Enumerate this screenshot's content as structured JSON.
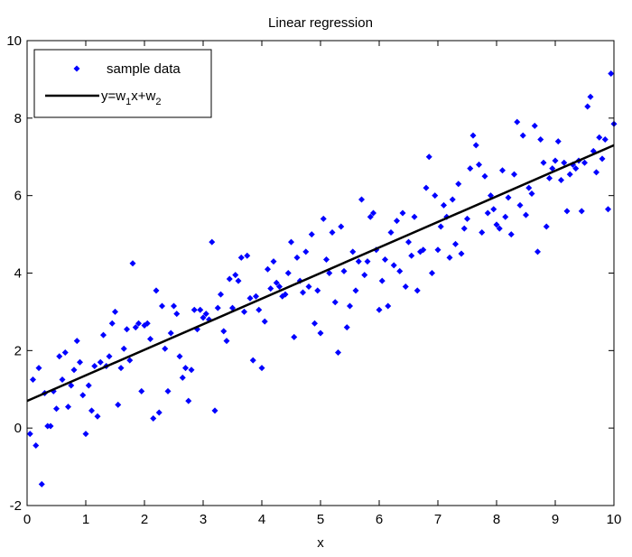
{
  "chart_data": {
    "type": "scatter",
    "title": "Linear regression",
    "xlabel": "x",
    "ylabel": "",
    "xlim": [
      0,
      10
    ],
    "ylim": [
      -2,
      10
    ],
    "xticks": [
      0,
      1,
      2,
      3,
      4,
      5,
      6,
      7,
      8,
      9,
      10
    ],
    "yticks": [
      -2,
      0,
      2,
      4,
      6,
      8,
      10
    ],
    "xtick_labels": [
      "0",
      "1",
      "2",
      "3",
      "4",
      "5",
      "6",
      "7",
      "8",
      "9",
      "10"
    ],
    "ytick_labels": [
      "-2",
      "0",
      "2",
      "4",
      "6",
      "8",
      "10"
    ],
    "grid": false,
    "legend_position": "top-left",
    "legend": {
      "sample_label": "sample data",
      "fit_label_parts": {
        "pre": "y=w",
        "sub1": "1",
        "mid": "x+w",
        "sub2": "2"
      }
    },
    "series": [
      {
        "kind": "scatter",
        "color": "#0000ff",
        "marker": "diamond",
        "points": [
          [
            0.05,
            -0.15
          ],
          [
            0.1,
            1.25
          ],
          [
            0.15,
            -0.45
          ],
          [
            0.2,
            1.55
          ],
          [
            0.25,
            -1.45
          ],
          [
            0.3,
            0.9
          ],
          [
            0.35,
            0.05
          ],
          [
            0.4,
            0.05
          ],
          [
            0.45,
            0.95
          ],
          [
            0.5,
            0.5
          ],
          [
            0.55,
            1.85
          ],
          [
            0.6,
            1.25
          ],
          [
            0.65,
            1.95
          ],
          [
            0.7,
            0.55
          ],
          [
            0.75,
            1.1
          ],
          [
            0.8,
            1.5
          ],
          [
            0.85,
            2.25
          ],
          [
            0.9,
            1.7
          ],
          [
            0.95,
            0.85
          ],
          [
            1.0,
            -0.15
          ],
          [
            1.05,
            1.1
          ],
          [
            1.1,
            0.45
          ],
          [
            1.15,
            1.6
          ],
          [
            1.2,
            0.3
          ],
          [
            1.25,
            1.7
          ],
          [
            1.3,
            2.4
          ],
          [
            1.35,
            1.6
          ],
          [
            1.4,
            1.85
          ],
          [
            1.45,
            2.7
          ],
          [
            1.5,
            3.0
          ],
          [
            1.55,
            0.6
          ],
          [
            1.6,
            1.55
          ],
          [
            1.65,
            2.05
          ],
          [
            1.7,
            2.55
          ],
          [
            1.75,
            1.75
          ],
          [
            1.8,
            4.25
          ],
          [
            1.85,
            2.6
          ],
          [
            1.9,
            2.7
          ],
          [
            1.95,
            0.95
          ],
          [
            2.0,
            2.65
          ],
          [
            2.05,
            2.7
          ],
          [
            2.1,
            2.3
          ],
          [
            2.15,
            0.25
          ],
          [
            2.2,
            3.55
          ],
          [
            2.25,
            0.4
          ],
          [
            2.3,
            3.15
          ],
          [
            2.35,
            2.05
          ],
          [
            2.4,
            0.95
          ],
          [
            2.45,
            2.45
          ],
          [
            2.5,
            3.15
          ],
          [
            2.55,
            2.95
          ],
          [
            2.6,
            1.85
          ],
          [
            2.65,
            1.3
          ],
          [
            2.7,
            1.55
          ],
          [
            2.75,
            0.7
          ],
          [
            2.8,
            1.5
          ],
          [
            2.85,
            3.05
          ],
          [
            2.9,
            2.55
          ],
          [
            2.95,
            3.05
          ],
          [
            3.0,
            2.85
          ],
          [
            3.05,
            2.95
          ],
          [
            3.1,
            2.8
          ],
          [
            3.15,
            4.8
          ],
          [
            3.2,
            0.45
          ],
          [
            3.25,
            3.1
          ],
          [
            3.3,
            3.45
          ],
          [
            3.35,
            2.5
          ],
          [
            3.4,
            2.25
          ],
          [
            3.45,
            3.85
          ],
          [
            3.5,
            3.1
          ],
          [
            3.55,
            3.95
          ],
          [
            3.6,
            3.8
          ],
          [
            3.65,
            4.4
          ],
          [
            3.7,
            3.0
          ],
          [
            3.75,
            4.45
          ],
          [
            3.8,
            3.35
          ],
          [
            3.85,
            1.75
          ],
          [
            3.9,
            3.4
          ],
          [
            3.95,
            3.05
          ],
          [
            4.0,
            1.55
          ],
          [
            4.05,
            2.75
          ],
          [
            4.1,
            4.1
          ],
          [
            4.15,
            3.6
          ],
          [
            4.2,
            4.3
          ],
          [
            4.25,
            3.75
          ],
          [
            4.3,
            3.65
          ],
          [
            4.35,
            3.4
          ],
          [
            4.4,
            3.45
          ],
          [
            4.45,
            4.0
          ],
          [
            4.5,
            4.8
          ],
          [
            4.55,
            2.35
          ],
          [
            4.6,
            4.4
          ],
          [
            4.65,
            3.8
          ],
          [
            4.7,
            3.5
          ],
          [
            4.75,
            4.55
          ],
          [
            4.8,
            3.65
          ],
          [
            4.85,
            5.0
          ],
          [
            4.9,
            2.7
          ],
          [
            4.95,
            3.55
          ],
          [
            5.0,
            2.45
          ],
          [
            5.05,
            5.4
          ],
          [
            5.1,
            4.35
          ],
          [
            5.15,
            4.0
          ],
          [
            5.2,
            5.05
          ],
          [
            5.25,
            3.25
          ],
          [
            5.3,
            1.95
          ],
          [
            5.35,
            5.2
          ],
          [
            5.4,
            4.05
          ],
          [
            5.45,
            2.6
          ],
          [
            5.5,
            3.15
          ],
          [
            5.55,
            4.55
          ],
          [
            5.6,
            3.55
          ],
          [
            5.65,
            4.3
          ],
          [
            5.7,
            5.9
          ],
          [
            5.75,
            3.95
          ],
          [
            5.8,
            4.3
          ],
          [
            5.85,
            5.45
          ],
          [
            5.9,
            5.55
          ],
          [
            5.95,
            4.6
          ],
          [
            6.0,
            3.05
          ],
          [
            6.05,
            3.8
          ],
          [
            6.1,
            4.35
          ],
          [
            6.15,
            3.15
          ],
          [
            6.2,
            5.05
          ],
          [
            6.25,
            4.2
          ],
          [
            6.3,
            5.35
          ],
          [
            6.35,
            4.05
          ],
          [
            6.4,
            5.55
          ],
          [
            6.45,
            3.65
          ],
          [
            6.5,
            4.8
          ],
          [
            6.55,
            4.45
          ],
          [
            6.6,
            5.45
          ],
          [
            6.65,
            3.55
          ],
          [
            6.7,
            4.55
          ],
          [
            6.75,
            4.6
          ],
          [
            6.8,
            6.2
          ],
          [
            6.85,
            7.0
          ],
          [
            6.9,
            4.0
          ],
          [
            6.95,
            6.0
          ],
          [
            7.0,
            4.6
          ],
          [
            7.05,
            5.2
          ],
          [
            7.1,
            5.75
          ],
          [
            7.15,
            5.45
          ],
          [
            7.2,
            4.4
          ],
          [
            7.25,
            5.9
          ],
          [
            7.3,
            4.75
          ],
          [
            7.35,
            6.3
          ],
          [
            7.4,
            4.5
          ],
          [
            7.45,
            5.15
          ],
          [
            7.5,
            5.4
          ],
          [
            7.55,
            6.7
          ],
          [
            7.6,
            7.55
          ],
          [
            7.65,
            7.3
          ],
          [
            7.7,
            6.8
          ],
          [
            7.75,
            5.05
          ],
          [
            7.8,
            6.5
          ],
          [
            7.85,
            5.55
          ],
          [
            7.9,
            6.0
          ],
          [
            7.95,
            5.65
          ],
          [
            8.0,
            5.25
          ],
          [
            8.05,
            5.15
          ],
          [
            8.1,
            6.65
          ],
          [
            8.15,
            5.45
          ],
          [
            8.2,
            5.95
          ],
          [
            8.25,
            5.0
          ],
          [
            8.3,
            6.55
          ],
          [
            8.35,
            7.9
          ],
          [
            8.4,
            5.75
          ],
          [
            8.45,
            7.55
          ],
          [
            8.5,
            5.5
          ],
          [
            8.55,
            6.2
          ],
          [
            8.6,
            6.05
          ],
          [
            8.65,
            7.8
          ],
          [
            8.7,
            4.55
          ],
          [
            8.75,
            7.45
          ],
          [
            8.8,
            6.85
          ],
          [
            8.85,
            5.2
          ],
          [
            8.9,
            6.45
          ],
          [
            8.95,
            6.7
          ],
          [
            9.0,
            6.9
          ],
          [
            9.05,
            7.4
          ],
          [
            9.1,
            6.4
          ],
          [
            9.15,
            6.85
          ],
          [
            9.2,
            5.6
          ],
          [
            9.25,
            6.55
          ],
          [
            9.3,
            6.8
          ],
          [
            9.35,
            6.7
          ],
          [
            9.4,
            6.9
          ],
          [
            9.45,
            5.6
          ],
          [
            9.5,
            6.85
          ],
          [
            9.55,
            8.3
          ],
          [
            9.6,
            8.55
          ],
          [
            9.65,
            7.15
          ],
          [
            9.7,
            6.6
          ],
          [
            9.75,
            7.5
          ],
          [
            9.8,
            6.95
          ],
          [
            9.85,
            7.45
          ],
          [
            9.9,
            5.65
          ],
          [
            9.95,
            9.15
          ],
          [
            10.0,
            7.85
          ]
        ]
      },
      {
        "kind": "line",
        "color": "#000000",
        "points": [
          [
            0,
            0.7
          ],
          [
            10,
            7.3
          ]
        ]
      }
    ]
  }
}
